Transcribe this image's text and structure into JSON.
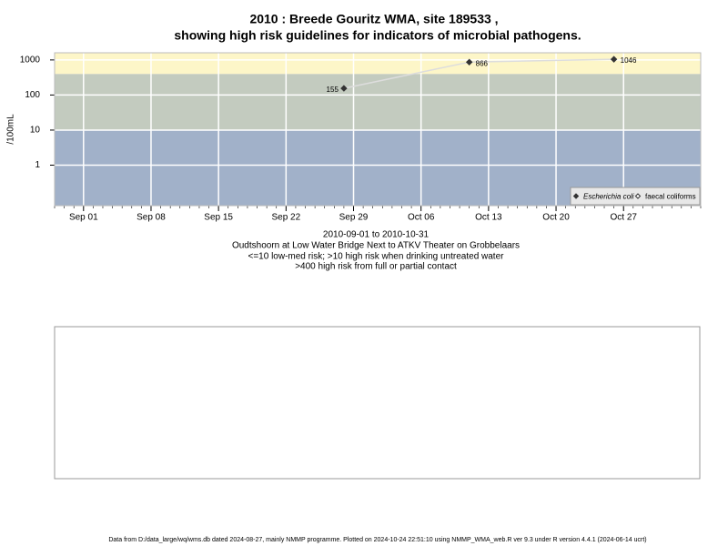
{
  "chart_data": {
    "type": "line",
    "title": [
      "2010 : Breede Gouritz WMA, site 189533 ,",
      "showing high risk guidelines for indicators of microbial pathogens."
    ],
    "y_label": "/100mL",
    "notes": [
      "2010-09-01 to 2010-10-31",
      "Oudtshoorn at Low Water Bridge Next to ATKV Theater on Grobbelaars",
      "<=10 low-med risk; >10 high risk when drinking untreated water",
      ">400 high risk from full or partial contact"
    ],
    "footer": "Data from D:/data_large/wq/wms.db dated 2024-08-27, mainly NMMP programme. Plotted on 2024-10-24 22:51:10 using NMMP_WMA_web.R ver 9.3 under R version 4.4.1 (2024-06-14 ucrt)",
    "x": [
      "2010-09-28",
      "2010-10-11",
      "2010-10-26"
    ],
    "series": [
      {
        "name": "Escherichia coli",
        "color": "#333333",
        "values": [
          155,
          866,
          1046
        ]
      },
      {
        "name": "faecal coliforms",
        "color": "#ffffff",
        "values": [
          null,
          null,
          null
        ]
      }
    ],
    "log_y": true,
    "ylim": [
      0.07,
      1600
    ],
    "yticks": [
      1,
      10,
      100,
      1000
    ],
    "xlim": [
      "2010-08-29",
      "2010-11-04"
    ],
    "xticks": [
      {
        "value": "2010-09-01",
        "label": "Sep 01"
      },
      {
        "value": "2010-09-08",
        "label": "Sep 08"
      },
      {
        "value": "2010-09-15",
        "label": "Sep 15"
      },
      {
        "value": "2010-09-22",
        "label": "Sep 22"
      },
      {
        "value": "2010-09-29",
        "label": "Sep 29"
      },
      {
        "value": "2010-10-06",
        "label": "Oct 06"
      },
      {
        "value": "2010-10-13",
        "label": "Oct 13"
      },
      {
        "value": "2010-10-20",
        "label": "Oct 20"
      },
      {
        "value": "2010-10-27",
        "label": "Oct 27"
      }
    ],
    "thresholds": [
      10,
      400
    ],
    "band_colors": [
      "#a1b1c9",
      "#c3cbbf",
      "#fdf6c8"
    ],
    "line_color": "#dddddd",
    "grid": true,
    "legend": "bottom-right"
  }
}
